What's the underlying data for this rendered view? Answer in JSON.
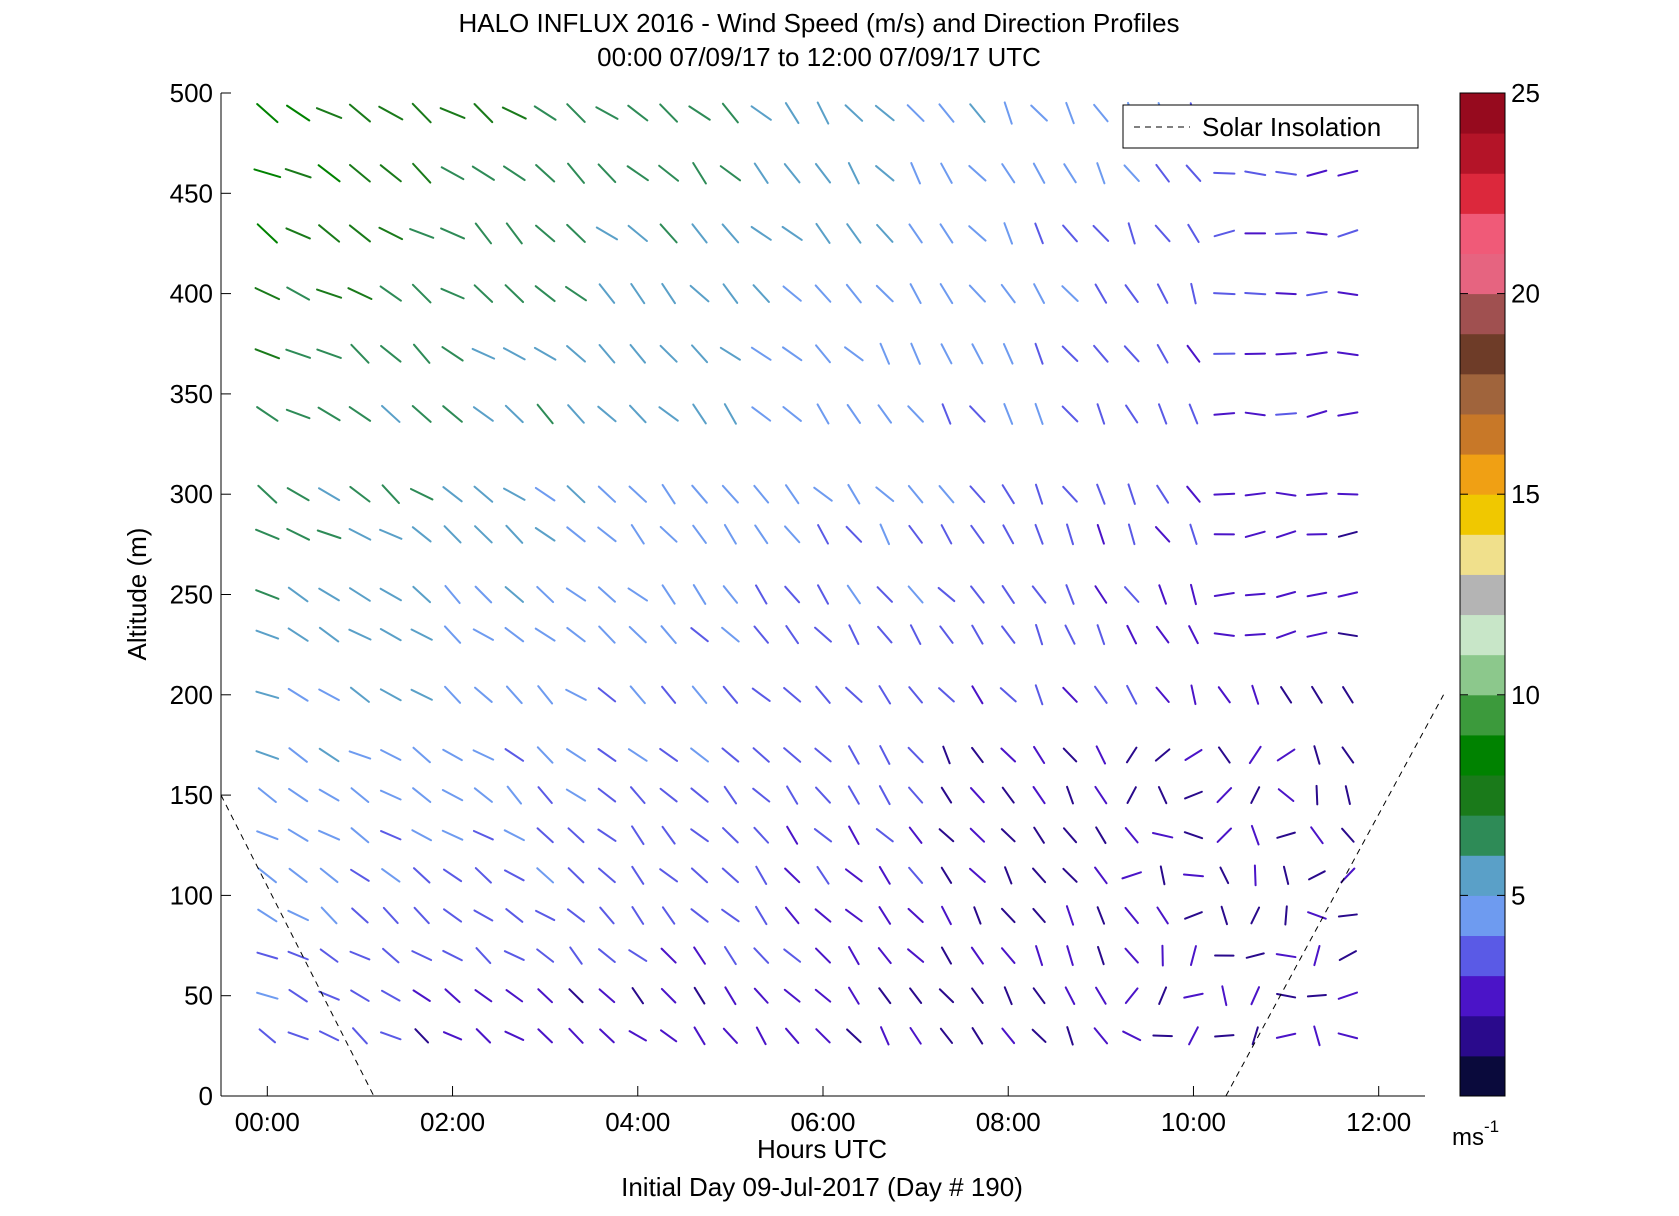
{
  "chart_data": {
    "type": "wind-barb-profile",
    "title": "HALO INFLUX 2016 - Wind Speed (m/s) and Direction Profiles",
    "subtitle": "00:00 07/09/17 to 12:00 07/09/17  UTC",
    "xlabel": "Hours UTC",
    "xlabel2": "Initial Day 09-Jul-2017 (Day # 190)",
    "ylabel": "Altitude (m)",
    "xlim": [
      -0.5,
      12.5
    ],
    "ylim": [
      0,
      500
    ],
    "x_ticks": [
      0,
      2,
      4,
      6,
      8,
      10,
      12
    ],
    "x_tick_labels": [
      "00:00",
      "02:00",
      "04:00",
      "06:00",
      "08:00",
      "10:00",
      "12:00"
    ],
    "y_ticks": [
      0,
      50,
      100,
      150,
      200,
      250,
      300,
      350,
      400,
      450,
      500
    ],
    "y_tick_labels": [
      "0",
      "50",
      "100",
      "150",
      "200",
      "250",
      "300",
      "350",
      "400",
      "450",
      "500"
    ],
    "colorbar": {
      "range": [
        0,
        25
      ],
      "ticks": [
        5,
        10,
        15,
        20,
        25
      ],
      "tick_labels": [
        "5",
        "10",
        "15",
        "20",
        "25"
      ],
      "unit_label": "ms",
      "unit_exponent": "-1",
      "colors": [
        "#0a0a3c",
        "#2a0a8c",
        "#4b14c8",
        "#5a5ae6",
        "#6e9bf0",
        "#5aa0c8",
        "#2e8b57",
        "#1a7a1a",
        "#008200",
        "#3c9a3c",
        "#8cc88c",
        "#c8e6c8",
        "#b4b4b4",
        "#f0e08c",
        "#f0c800",
        "#f0a014",
        "#c87828",
        "#a0643c",
        "#6e3c28",
        "#a05050",
        "#e66480",
        "#f05a78",
        "#dc283c",
        "#b41428",
        "#960a1e"
      ]
    },
    "legend": {
      "entries": [
        "Solar Insolation"
      ],
      "placement": "top-right"
    },
    "solar_insolation": {
      "style": "dashed",
      "segments": [
        {
          "x": [
            -0.5,
            1.15
          ],
          "y": [
            150,
            0
          ]
        },
        {
          "x": [
            10.35,
            12.7
          ],
          "y": [
            0,
            200
          ]
        }
      ]
    },
    "times_hours": [
      0,
      0.333,
      0.667,
      1.0,
      1.333,
      1.667,
      2.0,
      2.333,
      2.667,
      3.0,
      3.333,
      3.667,
      4.0,
      4.333,
      4.667,
      5.0,
      5.333,
      5.667,
      6.0,
      6.333,
      6.667,
      7.0,
      7.333,
      7.667,
      8.0,
      8.333,
      8.667,
      9.0,
      9.333,
      9.667,
      10.0,
      10.333,
      10.667,
      11.0,
      11.333,
      11.667
    ],
    "altitudes_m": [
      30,
      50,
      70,
      90,
      110,
      130,
      150,
      170,
      200,
      230,
      250,
      280,
      300,
      340,
      370,
      400,
      430,
      460,
      490
    ],
    "wind_description": "Wind vectors colored by speed (m/s): northwesterly green flow (8-10 m/s) at early hours aloft, weakening to light blue then purple (2-4 m/s) by midday; near-surface winds light and variable, dark navy (< 2 m/s)."
  }
}
